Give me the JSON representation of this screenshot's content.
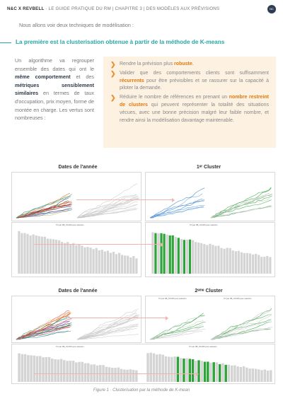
{
  "header": {
    "brand": "N&C X REVBELL",
    "text": " · LE GUIDE PRATIQUE DU RM | CHAPITRE 3 | DES MODÈLES AUX PRÉVISIONS",
    "logo_text": "NC"
  },
  "intro": "Nous allons voir deux techniques de modélisation :",
  "section_title": "La première est la clusterisation obtenue à partir de la méthode de K-means",
  "left_paragraph": {
    "t1": "Un algorithme va regrouper ensemble des dates qui ont le ",
    "b1": "même comportement",
    "t2": " et des ",
    "b2": "métriques sensiblement similaires",
    "t3": " en termes de taux d'occupation, prix moyen, forme de montée en charge. Les vertus sont nombreuses :"
  },
  "callout": {
    "items": [
      {
        "pre": "Rendre la prévision plus ",
        "hl": "robuste",
        "post": "."
      },
      {
        "pre": "Valider que des comportements clients sont suffisamment ",
        "hl": "récurrents",
        "post": " pour être prévisibles et se rassurer sur la capacité à piloter la demande."
      },
      {
        "pre": "Réduire le nombre de références en prenant un ",
        "hl": "nombre restreint de clusters",
        "post": " qui peuvent représenter la totalité des situations vécues, avec une bonne précision malgré leur faible nombre, et rendre ainsi la modélisation davantage maintenable."
      }
    ]
  },
  "figure": {
    "top_left_title": "Dates de l'année",
    "top_right_title": "1ᵉʳ Cluster",
    "bottom_left_title": "Dates de l'année",
    "bottom_right_title": "2ᵉᵐᵉ Cluster",
    "mini_label": "TO par NB_JOURS pour selection",
    "caption": "Figure 1 · Clusterisation par la méthode de K-mean"
  },
  "colors": {
    "accent": "#2aa6a6",
    "orange": "#e8902c",
    "callout_bg": "#fdf1e2",
    "green": "#2ea33a",
    "bar_grey": "#d4d4d4",
    "arrow": "#f2b3ac"
  }
}
